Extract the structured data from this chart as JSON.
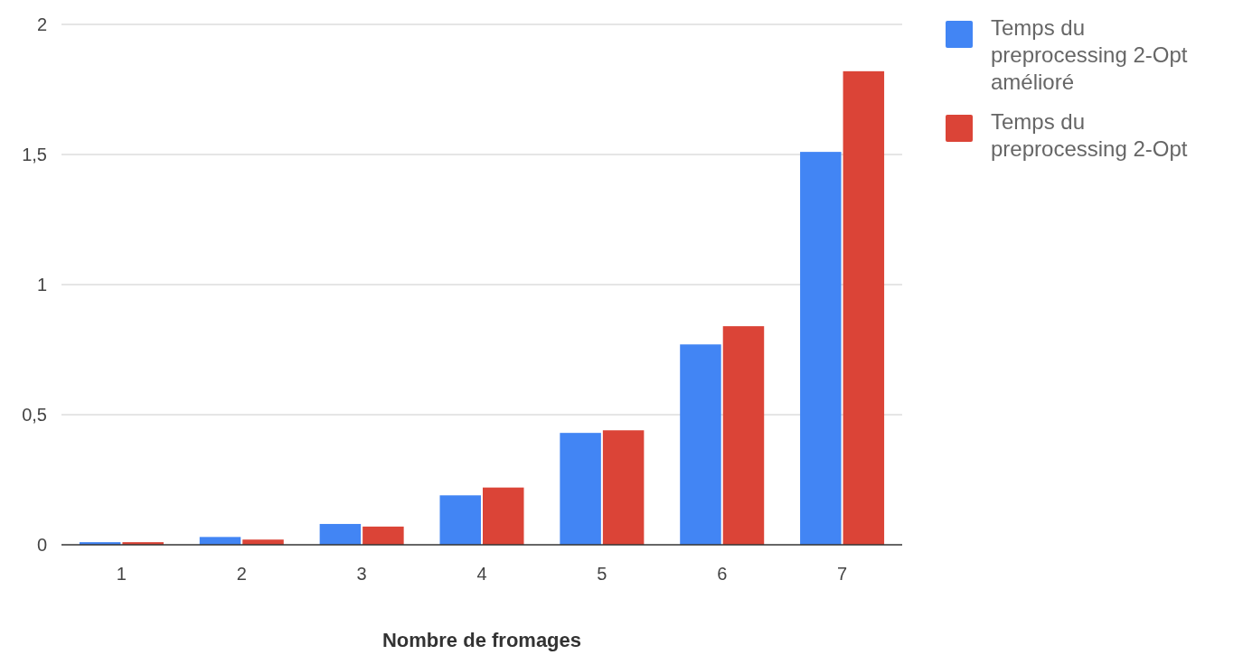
{
  "chart_data": {
    "type": "bar",
    "xlabel": "Nombre de fromages",
    "categories": [
      "1",
      "2",
      "3",
      "4",
      "5",
      "6",
      "7"
    ],
    "series": [
      {
        "name": "Temps du preprocessing 2-Opt amélioré",
        "color": "#4285f4",
        "values": [
          0.01,
          0.03,
          0.08,
          0.19,
          0.43,
          0.77,
          1.51
        ]
      },
      {
        "name": "Temps du preprocessing 2-Opt",
        "color": "#db4437",
        "values": [
          0.01,
          0.02,
          0.07,
          0.22,
          0.44,
          0.84,
          1.82
        ]
      }
    ],
    "ylim": [
      0,
      2
    ],
    "yticks": [
      0,
      {
        "value": 0.5,
        "label": "0,5"
      },
      1,
      {
        "value": 1.5,
        "label": "1,5"
      },
      2
    ],
    "grid": "y",
    "legend": "right"
  }
}
